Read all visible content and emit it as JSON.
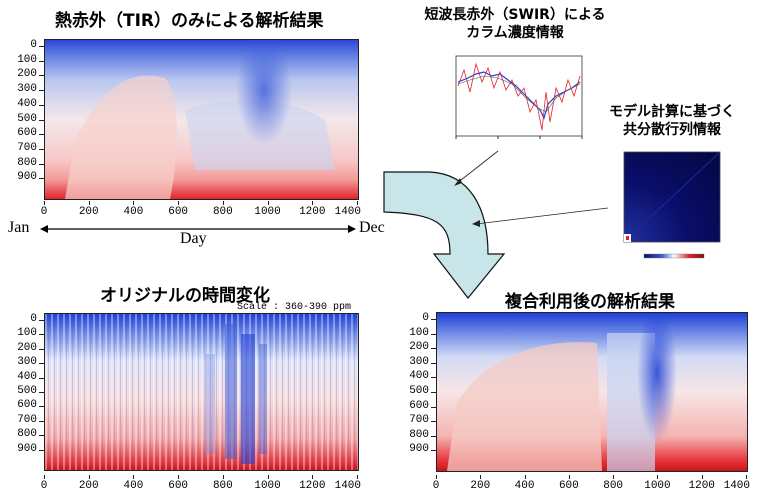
{
  "panels": {
    "tir": {
      "title": "熱赤外（TIR）のみによる解析結果"
    },
    "original": {
      "title": "オリジナルの時間変化",
      "scale": "Scale : 360-390 ppm"
    },
    "combined": {
      "title": "複合利用後の解析結果"
    }
  },
  "inputs": {
    "swir": {
      "title_line1": "短波長赤外（SWIR）による",
      "title_line2": "カラム濃度情報"
    },
    "model": {
      "title_line1": "モデル計算に基づく",
      "title_line2": "共分散行列情報"
    }
  },
  "axis": {
    "y_ticks": [
      "0",
      "100",
      "200",
      "300",
      "400",
      "500",
      "600",
      "700",
      "800",
      "900"
    ],
    "x_ticks": [
      "0",
      "200",
      "400",
      "600",
      "800",
      "1000",
      "1200",
      "1400"
    ]
  },
  "timeline": {
    "start": "Jan",
    "label": "Day",
    "end": "Dec"
  },
  "colors": {
    "low": "#1f3fd6",
    "mid": "#ffffff",
    "high": "#e0232b",
    "arrow_fill": "#c8e6ea"
  }
}
